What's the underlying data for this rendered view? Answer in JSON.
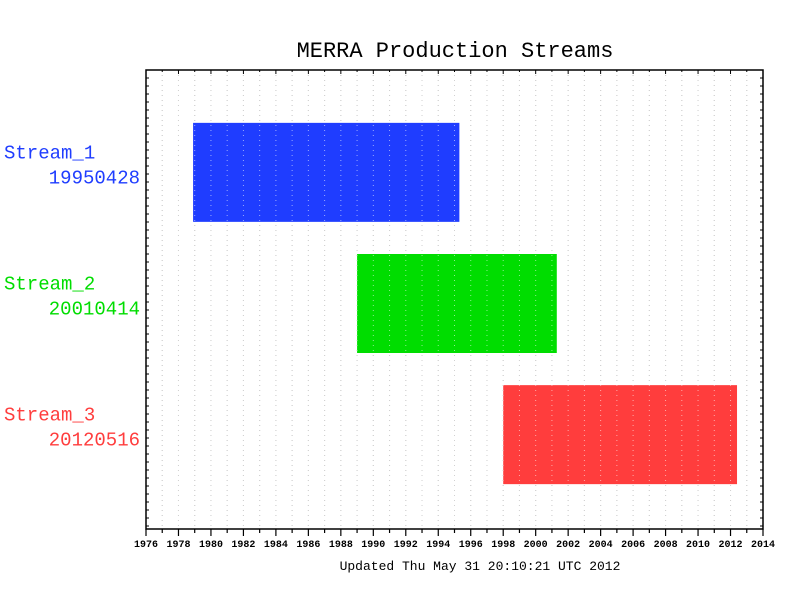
{
  "chart_data": {
    "type": "bar",
    "orientation": "horizontal-timeline",
    "title": "MERRA Production Streams",
    "footer": "Updated Thu May 31 20:10:21 UTC 2012",
    "x_axis": {
      "range": [
        1976,
        2014
      ],
      "tick_step": 2,
      "tick_labels": [
        "1976",
        "1978",
        "1980",
        "1982",
        "1984",
        "1986",
        "1988",
        "1990",
        "1992",
        "1994",
        "1996",
        "1998",
        "2000",
        "2002",
        "2004",
        "2006",
        "2008",
        "2010",
        "2012",
        "2014"
      ],
      "minor_grid_step": 1,
      "grid": "dotted vertical"
    },
    "series": [
      {
        "name": "Stream_1",
        "date_label": "19950428",
        "start": 1978.9,
        "end": 1995.3,
        "color": "#1f3dff"
      },
      {
        "name": "Stream_2",
        "date_label": "20010414",
        "start": 1989.0,
        "end": 2001.3,
        "color": "#00dd00"
      },
      {
        "name": "Stream_3",
        "date_label": "20120516",
        "start": 1998.0,
        "end": 2012.4,
        "color": "#ff3d3d"
      }
    ]
  }
}
